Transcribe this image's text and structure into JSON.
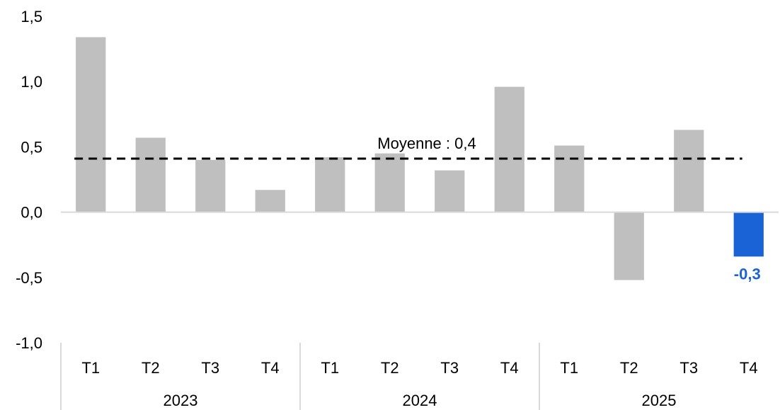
{
  "chart_data": {
    "type": "bar",
    "title": "",
    "xlabel": "",
    "ylabel": "",
    "ylim": [
      -1.0,
      1.5
    ],
    "yticks": [
      "1,5",
      "1,0",
      "0,5",
      "0,0",
      "-0,5",
      "-1,0"
    ],
    "ytick_values": [
      1.5,
      1.0,
      0.5,
      0.0,
      -0.5,
      -1.0
    ],
    "groups": [
      {
        "label": "2023",
        "categories": [
          "T1",
          "T2",
          "T3",
          "T4"
        ]
      },
      {
        "label": "2024",
        "categories": [
          "T1",
          "T2",
          "T3",
          "T4"
        ]
      },
      {
        "label": "2025",
        "categories": [
          "T1",
          "T2",
          "T3",
          "T4"
        ]
      }
    ],
    "values": [
      1.34,
      0.57,
      0.4,
      0.17,
      0.42,
      0.45,
      0.32,
      0.96,
      0.51,
      -0.52,
      0.63,
      -0.34
    ],
    "highlight_index": 11,
    "highlight_label": "-0,3",
    "average": {
      "value": 0.41,
      "label": "Moyenne : 0,4"
    },
    "colors": {
      "bar": "#bfbfbf",
      "highlight": "#1a63d6",
      "average_line": "#000000",
      "axis": "#d9d9d9"
    },
    "grid": false,
    "legend": "none"
  }
}
